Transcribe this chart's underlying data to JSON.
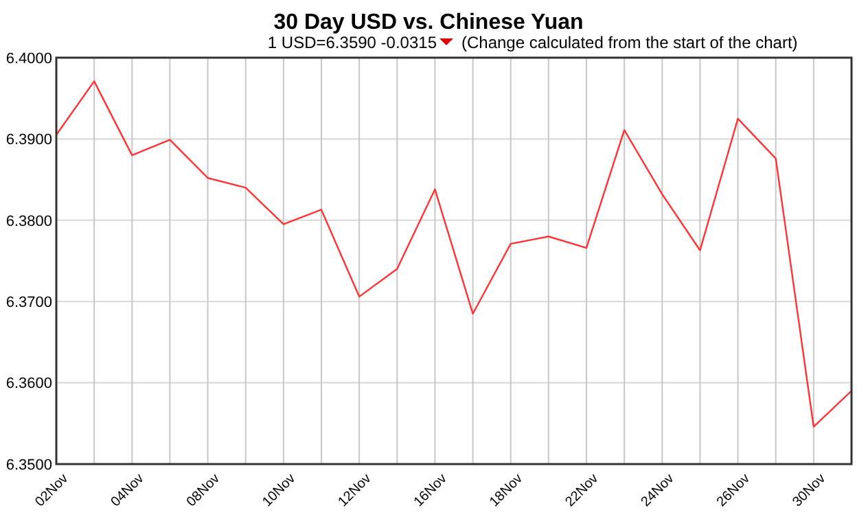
{
  "chart_data": {
    "type": "line",
    "title": "30 Day USD vs. Chinese Yuan",
    "subtitle": "1 USD=6.3590  -0.0315",
    "annotations": [
      "(Change calculated from the start of the chart)"
    ],
    "categories": [
      "02Nov",
      null,
      "04Nov",
      null,
      "08Nov",
      null,
      "10Nov",
      null,
      "12Nov",
      null,
      "16Nov",
      null,
      "18Nov",
      null,
      "22Nov",
      null,
      "24Nov",
      null,
      "26Nov",
      null,
      "30Nov",
      null
    ],
    "series": [
      {
        "color": "#ff3333",
        "values": [
          6.3905,
          6.3971,
          6.388,
          6.3899,
          6.3852,
          6.384,
          6.3795,
          6.3813,
          6.3706,
          6.374,
          6.3838,
          6.3685,
          6.3771,
          6.378,
          6.3766,
          6.3911,
          6.3832,
          6.3763,
          6.3925,
          6.3876,
          6.3546,
          6.359
        ]
      }
    ],
    "ylim": [
      6.35,
      6.4
    ],
    "yticks": [
      {
        "value": 6.35,
        "label": "6.3500"
      },
      {
        "value": 6.36,
        "label": "6.3600"
      },
      {
        "value": 6.37,
        "label": "6.3700"
      },
      {
        "value": 6.38,
        "label": "6.3800"
      },
      {
        "value": 6.39,
        "label": "6.3900"
      },
      {
        "value": 6.4,
        "label": "6.4000"
      }
    ],
    "grid": true,
    "marker": "none",
    "line_style": "solid"
  }
}
